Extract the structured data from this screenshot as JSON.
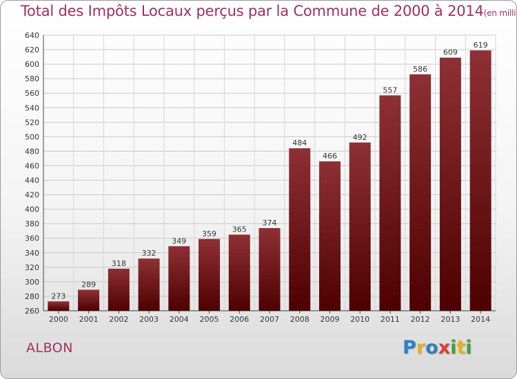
{
  "header": {
    "title": "Total des Impôts Locaux perçus par la Commune de 2000 à 2014",
    "unit": "(en milliers d'€)"
  },
  "footer": {
    "commune": "ALBON",
    "brand": "Proxiti",
    "brand_letters": [
      {
        "ch": "P",
        "color": "#2e7fc4"
      },
      {
        "ch": "r",
        "color": "#e8b21f"
      },
      {
        "ch": "o",
        "color": "#2e7fc4"
      },
      {
        "ch": "x",
        "color": "#e03c31"
      },
      {
        "ch": "i",
        "color": "#3fa535"
      },
      {
        "ch": "t",
        "color": "#e8b21f"
      },
      {
        "ch": "i",
        "color": "#3fa535"
      }
    ]
  },
  "chart_data": {
    "type": "bar",
    "title": "Total des Impôts Locaux perçus par la Commune de 2000 à 2014",
    "xlabel": "",
    "ylabel": "",
    "categories": [
      "2000",
      "2001",
      "2002",
      "2003",
      "2004",
      "2005",
      "2006",
      "2007",
      "2008",
      "2009",
      "2010",
      "2011",
      "2012",
      "2013",
      "2014"
    ],
    "values": [
      273,
      289,
      318,
      332,
      349,
      359,
      365,
      374,
      484,
      466,
      492,
      557,
      586,
      609,
      619
    ],
    "ylim": [
      260,
      640
    ],
    "yticks": [
      260,
      280,
      300,
      320,
      340,
      360,
      380,
      400,
      420,
      440,
      460,
      480,
      500,
      520,
      540,
      560,
      580,
      600,
      620,
      640
    ],
    "grid": true,
    "bar_color": "#7a1f22"
  }
}
